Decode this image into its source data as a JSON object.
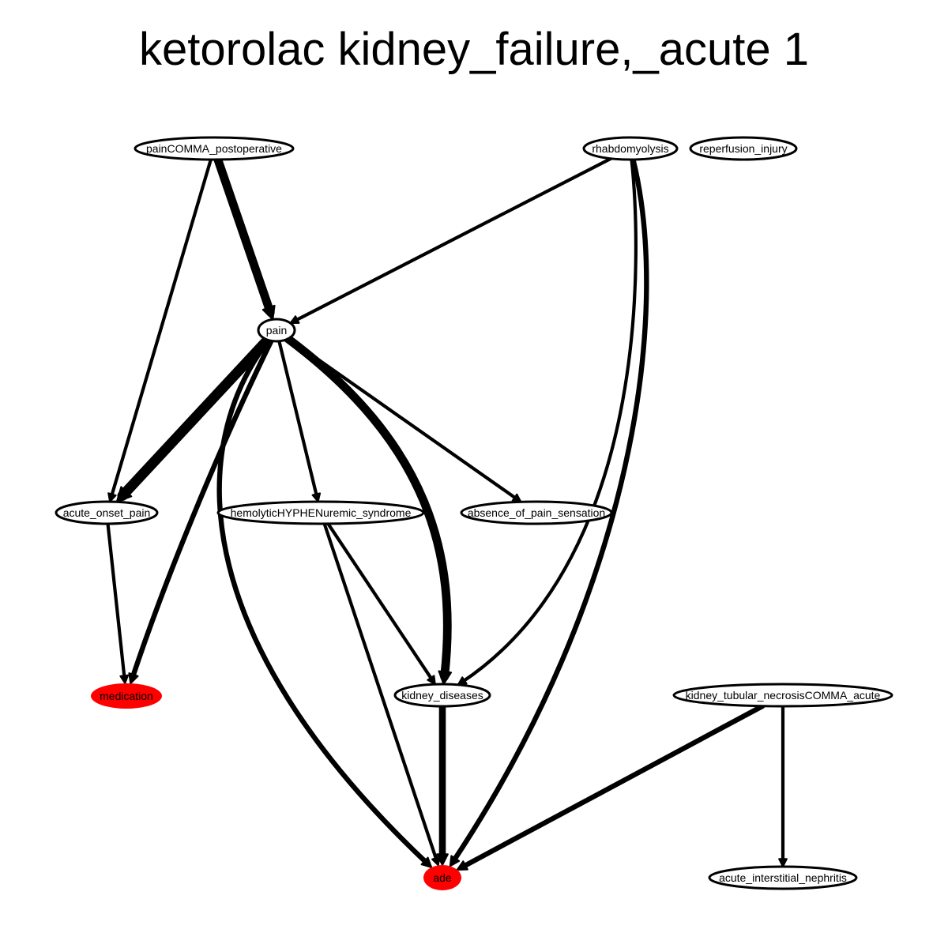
{
  "title": "ketorolac kidney_failure,_acute 1",
  "colors": {
    "highlight_node": "#ff0000",
    "node_fill": "#ffffff",
    "edge": "#000000"
  },
  "nodes": [
    {
      "id": "painCOMMA_postoperative",
      "label": "painCOMMA_postoperative",
      "highlighted": false
    },
    {
      "id": "rhabdomyolysis",
      "label": "rhabdomyolysis",
      "highlighted": false
    },
    {
      "id": "reperfusion_injury",
      "label": "reperfusion_injury",
      "highlighted": false
    },
    {
      "id": "pain",
      "label": "pain",
      "highlighted": false
    },
    {
      "id": "acute_onset_pain",
      "label": "acute_onset_pain",
      "highlighted": false
    },
    {
      "id": "hemolyticHYPHENuremic_syndrome",
      "label": "hemolyticHYPHENuremic_syndrome",
      "highlighted": false
    },
    {
      "id": "absence_of_pain_sensation",
      "label": "absence_of_pain_sensation",
      "highlighted": false
    },
    {
      "id": "medication",
      "label": "medication",
      "highlighted": true
    },
    {
      "id": "kidney_diseases",
      "label": "kidney_diseases",
      "highlighted": false
    },
    {
      "id": "kidney_tubular_necrosisCOMMA_acute",
      "label": "kidney_tubular_necrosisCOMMA_acute",
      "highlighted": false
    },
    {
      "id": "ade",
      "label": "ade",
      "highlighted": true
    },
    {
      "id": "acute_interstitial_nephritis",
      "label": "acute_interstitial_nephritis",
      "highlighted": false
    }
  ],
  "edges": [
    {
      "from": "painCOMMA_postoperative",
      "to": "pain",
      "weight": 4
    },
    {
      "from": "painCOMMA_postoperative",
      "to": "acute_onset_pain",
      "weight": 1
    },
    {
      "from": "rhabdomyolysis",
      "to": "pain",
      "weight": 1
    },
    {
      "from": "rhabdomyolysis",
      "to": "kidney_diseases",
      "weight": 1
    },
    {
      "from": "rhabdomyolysis",
      "to": "ade",
      "weight": 2
    },
    {
      "from": "pain",
      "to": "acute_onset_pain",
      "weight": 5
    },
    {
      "from": "pain",
      "to": "medication",
      "weight": 2
    },
    {
      "from": "pain",
      "to": "ade",
      "weight": 2
    },
    {
      "from": "pain",
      "to": "hemolyticHYPHENuremic_syndrome",
      "weight": 1
    },
    {
      "from": "pain",
      "to": "kidney_diseases",
      "weight": 4
    },
    {
      "from": "pain",
      "to": "absence_of_pain_sensation",
      "weight": 1
    },
    {
      "from": "acute_onset_pain",
      "to": "medication",
      "weight": 1
    },
    {
      "from": "hemolyticHYPHENuremic_syndrome",
      "to": "kidney_diseases",
      "weight": 1
    },
    {
      "from": "hemolyticHYPHENuremic_syndrome",
      "to": "ade",
      "weight": 1
    },
    {
      "from": "kidney_diseases",
      "to": "ade",
      "weight": 3
    },
    {
      "from": "kidney_tubular_necrosisCOMMA_acute",
      "to": "ade",
      "weight": 2
    },
    {
      "from": "kidney_tubular_necrosisCOMMA_acute",
      "to": "acute_interstitial_nephritis",
      "weight": 1
    }
  ]
}
